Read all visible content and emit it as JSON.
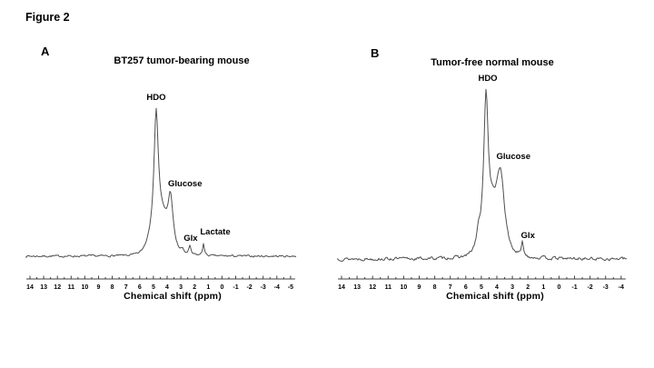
{
  "figure_label": "Figure 2",
  "panels": [
    {
      "letter": "A",
      "title": "BT257 tumor-bearing mouse"
    },
    {
      "letter": "B",
      "title": "Tumor-free normal mouse"
    }
  ],
  "colors": {
    "background": "#ffffff",
    "text": "#000000",
    "trace": "#4f4f4f",
    "axis": "#3f3f3f"
  },
  "chart_data": [
    {
      "type": "line",
      "panel": "A",
      "title": "BT257 tumor-bearing mouse",
      "xlabel": "Chemical shift (ppm)",
      "x_unit": "ppm",
      "x_reversed": true,
      "x_ticks": [
        14,
        13,
        12,
        11,
        10,
        9,
        8,
        7,
        6,
        5,
        4,
        3,
        2,
        1,
        0,
        -1,
        -2,
        -3,
        -4,
        -5
      ],
      "y_axis_visible": false,
      "peaks": [
        {
          "name": "HDO",
          "ppm": 4.8,
          "rel_intensity": 1.0,
          "label_dx": 0,
          "label_dy": 16
        },
        {
          "name": "Glucose",
          "ppm": 3.75,
          "rel_intensity": 0.44,
          "label_dx": 16,
          "label_dy": 14
        },
        {
          "name": "Glx",
          "ppm": 2.35,
          "rel_intensity": 0.06,
          "label_dx": 1,
          "label_dy": 14
        },
        {
          "name": "Lactate",
          "ppm": 1.35,
          "rel_intensity": 0.09,
          "label_dx": 13,
          "label_dy": 17
        }
      ],
      "profile": [
        {
          "center": 4.55,
          "amp": 40,
          "width": 0.8,
          "shape": "gauss"
        },
        {
          "center": 4.8,
          "amp": 125,
          "width": 0.18,
          "shape": "lorentz"
        },
        {
          "center": 3.75,
          "amp": 53,
          "width": 0.22,
          "shape": "lorentz"
        },
        {
          "center": 2.9,
          "amp": 4,
          "width": 0.12,
          "shape": "lorentz"
        },
        {
          "center": 2.35,
          "amp": 9,
          "width": 0.09,
          "shape": "lorentz"
        },
        {
          "center": 1.35,
          "amp": 14,
          "width": 0.07,
          "shape": "lorentz"
        }
      ],
      "noise_amp": 1.0,
      "seed": 7
    },
    {
      "type": "line",
      "panel": "B",
      "title": "Tumor-free normal mouse",
      "xlabel": "Chemical shift (ppm)",
      "x_unit": "ppm",
      "x_reversed": true,
      "x_ticks": [
        14,
        13,
        12,
        11,
        10,
        9,
        8,
        7,
        6,
        5,
        4,
        3,
        2,
        1,
        0,
        -1,
        -2,
        -3,
        -4
      ],
      "y_axis_visible": false,
      "peaks": [
        {
          "name": "HDO",
          "ppm": 4.7,
          "rel_intensity": 1.0,
          "label_dx": 2,
          "label_dy": 16
        },
        {
          "name": "Glucose",
          "ppm": 3.75,
          "rel_intensity": 0.55,
          "label_dx": 14,
          "label_dy": 18
        },
        {
          "name": "Glx",
          "ppm": 2.35,
          "rel_intensity": 0.09,
          "label_dx": 6,
          "label_dy": 12
        }
      ],
      "profile": [
        {
          "center": 4.35,
          "amp": 45,
          "width": 0.75,
          "shape": "gauss"
        },
        {
          "center": 4.7,
          "amp": 145,
          "width": 0.16,
          "shape": "lorentz"
        },
        {
          "center": 5.2,
          "amp": 13,
          "width": 0.1,
          "shape": "lorentz"
        },
        {
          "center": 3.75,
          "amp": 72,
          "width": 0.3,
          "shape": "lorentz"
        },
        {
          "center": 2.35,
          "amp": 15,
          "width": 0.08,
          "shape": "lorentz"
        }
      ],
      "noise_amp": 1.6,
      "seed": 13
    }
  ]
}
